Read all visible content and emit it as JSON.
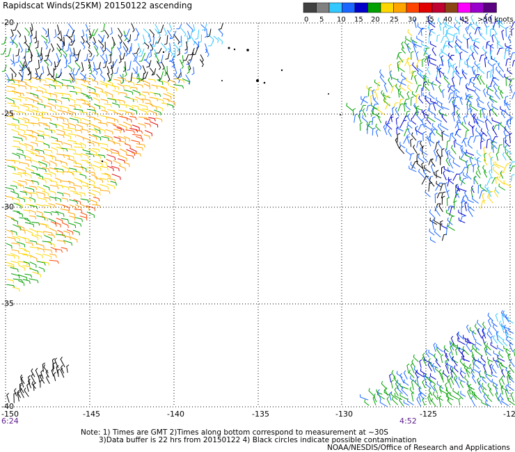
{
  "title": "Rapidscat Winds(25KM) 20150122 ascending",
  "legend": {
    "labels": [
      "0",
      "5",
      "10",
      "15",
      "20",
      "25",
      "30",
      "35",
      "40",
      "45",
      ">50 knots"
    ],
    "colors": [
      "#404040",
      "#808080",
      "#33c8ff",
      "#1a66ff",
      "#0000c8",
      "#00a000",
      "#ffd700",
      "#ffa500",
      "#ff4500",
      "#e00000",
      "#c00030",
      "#8b4513",
      "#ff00ff",
      "#9900cc",
      "#5a0080"
    ]
  },
  "axes": {
    "lon_ticks": [
      "-150",
      "-145",
      "-140",
      "-135",
      "-130",
      "-125",
      "-12"
    ],
    "lat_ticks": [
      "-20",
      "-25",
      "-30",
      "-35",
      "-40"
    ]
  },
  "times": {
    "left": "6:24",
    "right": "4:52"
  },
  "notes": {
    "line1": "Note: 1) Times are GMT 2)Times along bottom correspond to measurement at ~30S",
    "line2": "3)Data buffer is 22 hrs from 20150122 4) Black circles indicate possible contamination",
    "line3": "NOAA/NESDIS/Office of Research and Applications"
  }
}
